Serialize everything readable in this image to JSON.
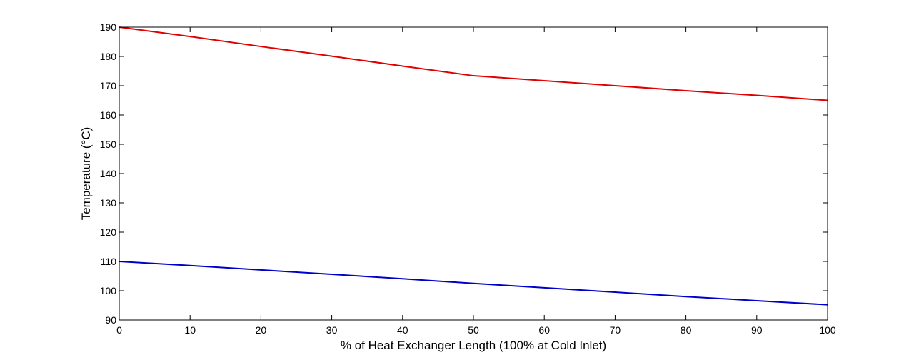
{
  "chart_data": {
    "type": "line",
    "title": "",
    "xlabel": "% of Heat Exchanger Length (100% at Cold Inlet)",
    "ylabel": "Temperature (°C)",
    "xlim": [
      0,
      100
    ],
    "ylim": [
      90,
      190
    ],
    "xticks": [
      0,
      10,
      20,
      30,
      40,
      50,
      60,
      70,
      80,
      90,
      100
    ],
    "yticks": [
      90,
      100,
      110,
      120,
      130,
      140,
      150,
      160,
      170,
      180,
      190
    ],
    "grid": false,
    "legend": "none",
    "series": [
      {
        "color": "#e00000",
        "x": [
          0,
          10,
          20,
          30,
          40,
          50,
          60,
          70,
          80,
          90,
          100
        ],
        "y": [
          190,
          186.8,
          183.4,
          180.1,
          176.7,
          173.4,
          171.7,
          170.0,
          168.3,
          166.7,
          165.0
        ]
      },
      {
        "color": "#0000cc",
        "x": [
          0,
          10,
          20,
          30,
          40,
          50,
          60,
          70,
          80,
          90,
          100
        ],
        "y": [
          110,
          108.6,
          107.1,
          105.6,
          104.1,
          102.5,
          101.0,
          99.5,
          98.0,
          96.6,
          95.2
        ]
      }
    ]
  }
}
